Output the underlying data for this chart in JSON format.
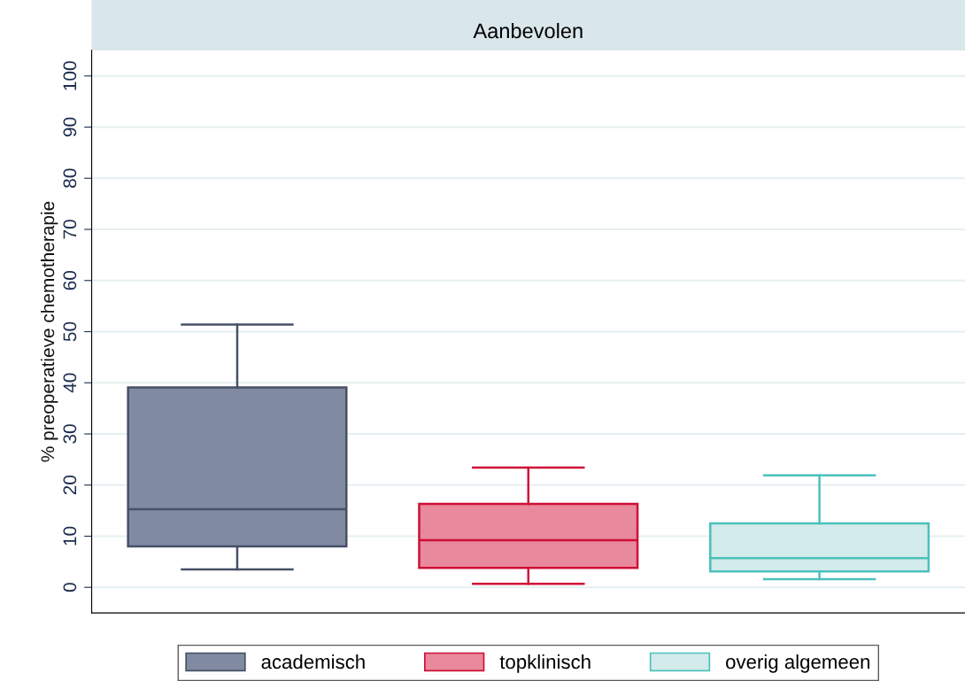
{
  "chart_data": {
    "type": "box",
    "title": "Aanbevolen",
    "ylabel": "% preoperatieve chemotherapie",
    "categories": [
      null
    ],
    "series": [
      {
        "name": "academisch",
        "color": "#808aa0",
        "boxes": [
          {
            "low": 3.5,
            "q1": 8.0,
            "median": 15.3,
            "q3": 39.1,
            "high": 51.4
          }
        ]
      },
      {
        "name": "topklinisch",
        "color": "#e8899d",
        "boxes": [
          {
            "low": 0.7,
            "q1": 3.8,
            "median": 9.2,
            "q3": 16.3,
            "high": 23.4
          }
        ]
      },
      {
        "name": "overig algemeen",
        "color": "#d3ebea",
        "boxes": [
          {
            "low": 1.6,
            "q1": 3.1,
            "median": 5.7,
            "q3": 12.5,
            "high": 21.9
          }
        ]
      }
    ],
    "ylim": [
      -5,
      105
    ],
    "yticks": [
      0,
      10,
      20,
      30,
      40,
      50,
      60,
      70,
      80,
      90,
      100
    ],
    "grid": "y",
    "legend": "bottom",
    "tick_labels": "y"
  }
}
